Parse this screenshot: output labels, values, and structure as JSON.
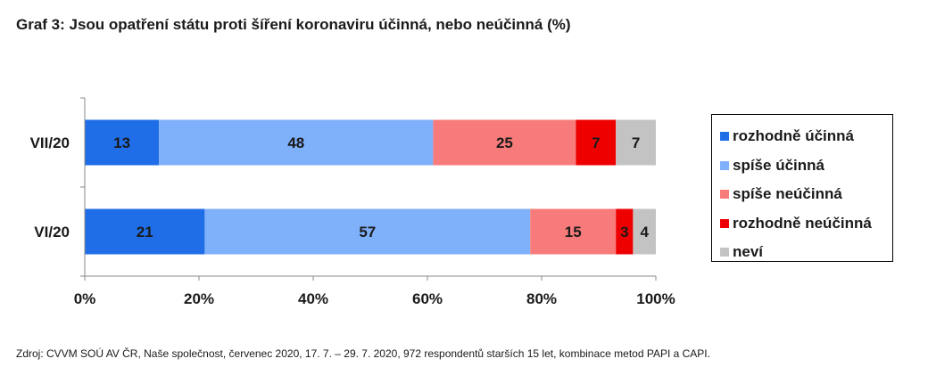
{
  "title": "Graf 3: Jsou opatření státu proti šíření koronaviru účinná, nebo neúčinná (%)",
  "source": "Zdroj: CVVM SOÚ AV ČR, Naše společnost, červenec 2020, 17. 7. – 29. 7. 2020, 972 respondentů starších 15 let, kombinace metod PAPI a CAPI.",
  "chart_data": {
    "type": "bar",
    "orientation": "horizontal",
    "stacked": "percent",
    "categories": [
      "VII/20",
      "VI/20"
    ],
    "series": [
      {
        "name": "rozhodně účinná",
        "color": "#1f6ee8",
        "values": [
          13,
          21
        ]
      },
      {
        "name": "spíše účinná",
        "color": "#7fb0fa",
        "values": [
          48,
          57
        ]
      },
      {
        "name": "spíše neúčinná",
        "color": "#f77b7b",
        "values": [
          25,
          15
        ]
      },
      {
        "name": "rozhodně neúčinná",
        "color": "#ee0000",
        "values": [
          7,
          3
        ]
      },
      {
        "name": "neví",
        "color": "#c3c3c3",
        "values": [
          7,
          4
        ]
      }
    ],
    "xlim": [
      0,
      100
    ],
    "xticks": [
      "0%",
      "20%",
      "40%",
      "60%",
      "80%",
      "100%"
    ],
    "legend": "right",
    "grid": false
  }
}
